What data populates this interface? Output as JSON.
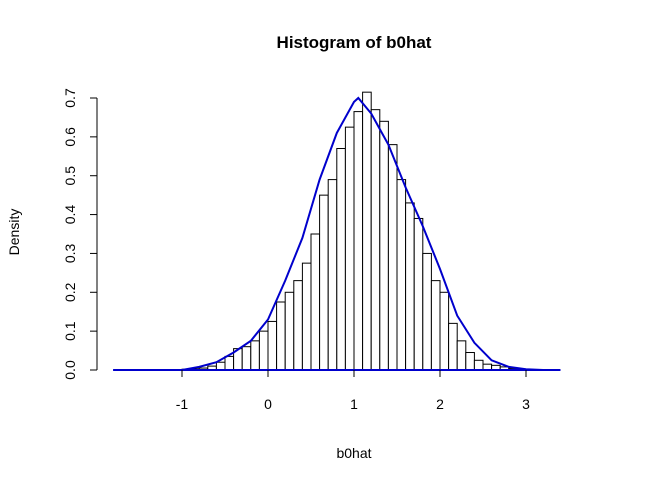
{
  "chart_data": {
    "type": "bar",
    "title": "Histogram of b0hat",
    "xlabel": "b0hat",
    "ylabel": "Density",
    "xlim": [
      -2,
      4
    ],
    "ylim": [
      0,
      0.7
    ],
    "x_ticks": [
      "-1",
      "0",
      "1",
      "2",
      "3"
    ],
    "y_ticks": [
      "0.0",
      "0.1",
      "0.2",
      "0.3",
      "0.4",
      "0.5",
      "0.6",
      "0.7"
    ],
    "grid": false,
    "bin_width": 0.1,
    "bins": [
      {
        "x0": -1.0,
        "x1": -0.9,
        "density": 0.002
      },
      {
        "x0": -0.9,
        "x1": -0.8,
        "density": 0.003
      },
      {
        "x0": -0.8,
        "x1": -0.7,
        "density": 0.005
      },
      {
        "x0": -0.7,
        "x1": -0.6,
        "density": 0.01
      },
      {
        "x0": -0.6,
        "x1": -0.5,
        "density": 0.02
      },
      {
        "x0": -0.5,
        "x1": -0.4,
        "density": 0.035
      },
      {
        "x0": -0.4,
        "x1": -0.3,
        "density": 0.055
      },
      {
        "x0": -0.3,
        "x1": -0.2,
        "density": 0.06
      },
      {
        "x0": -0.2,
        "x1": -0.1,
        "density": 0.075
      },
      {
        "x0": -0.1,
        "x1": 0.0,
        "density": 0.1
      },
      {
        "x0": 0.0,
        "x1": 0.1,
        "density": 0.125
      },
      {
        "x0": 0.1,
        "x1": 0.2,
        "density": 0.175
      },
      {
        "x0": 0.2,
        "x1": 0.3,
        "density": 0.2
      },
      {
        "x0": 0.3,
        "x1": 0.4,
        "density": 0.23
      },
      {
        "x0": 0.4,
        "x1": 0.5,
        "density": 0.275
      },
      {
        "x0": 0.5,
        "x1": 0.6,
        "density": 0.35
      },
      {
        "x0": 0.6,
        "x1": 0.7,
        "density": 0.45
      },
      {
        "x0": 0.7,
        "x1": 0.8,
        "density": 0.49
      },
      {
        "x0": 0.8,
        "x1": 0.9,
        "density": 0.57
      },
      {
        "x0": 0.9,
        "x1": 1.0,
        "density": 0.625
      },
      {
        "x0": 1.0,
        "x1": 1.1,
        "density": 0.665
      },
      {
        "x0": 1.1,
        "x1": 1.2,
        "density": 0.715
      },
      {
        "x0": 1.2,
        "x1": 1.3,
        "density": 0.67
      },
      {
        "x0": 1.3,
        "x1": 1.4,
        "density": 0.64
      },
      {
        "x0": 1.4,
        "x1": 1.5,
        "density": 0.58
      },
      {
        "x0": 1.5,
        "x1": 1.6,
        "density": 0.49
      },
      {
        "x0": 1.6,
        "x1": 1.7,
        "density": 0.43
      },
      {
        "x0": 1.7,
        "x1": 1.8,
        "density": 0.39
      },
      {
        "x0": 1.8,
        "x1": 1.9,
        "density": 0.3
      },
      {
        "x0": 1.9,
        "x1": 2.0,
        "density": 0.23
      },
      {
        "x0": 2.0,
        "x1": 2.1,
        "density": 0.2
      },
      {
        "x0": 2.1,
        "x1": 2.2,
        "density": 0.12
      },
      {
        "x0": 2.2,
        "x1": 2.3,
        "density": 0.075
      },
      {
        "x0": 2.3,
        "x1": 2.4,
        "density": 0.045
      },
      {
        "x0": 2.4,
        "x1": 2.5,
        "density": 0.025
      },
      {
        "x0": 2.5,
        "x1": 2.6,
        "density": 0.015
      },
      {
        "x0": 2.6,
        "x1": 2.7,
        "density": 0.012
      },
      {
        "x0": 2.7,
        "x1": 2.8,
        "density": 0.008
      },
      {
        "x0": 2.8,
        "x1": 2.9,
        "density": 0.004
      }
    ],
    "density_curve": {
      "color": "#0000cc",
      "x": [
        -1.8,
        -1.5,
        -1.2,
        -1.0,
        -0.8,
        -0.6,
        -0.4,
        -0.2,
        0.0,
        0.2,
        0.4,
        0.6,
        0.8,
        1.0,
        1.05,
        1.2,
        1.4,
        1.6,
        1.8,
        2.0,
        2.2,
        2.4,
        2.6,
        2.8,
        3.0,
        3.2,
        3.4
      ],
      "y": [
        0.0,
        0.0,
        0.0,
        0.0,
        0.008,
        0.02,
        0.045,
        0.075,
        0.13,
        0.23,
        0.34,
        0.49,
        0.61,
        0.69,
        0.7,
        0.66,
        0.58,
        0.47,
        0.37,
        0.26,
        0.14,
        0.07,
        0.025,
        0.008,
        0.002,
        0.0,
        0.0
      ]
    },
    "bar_fill": "#ffffff",
    "bar_stroke": "#000000"
  }
}
